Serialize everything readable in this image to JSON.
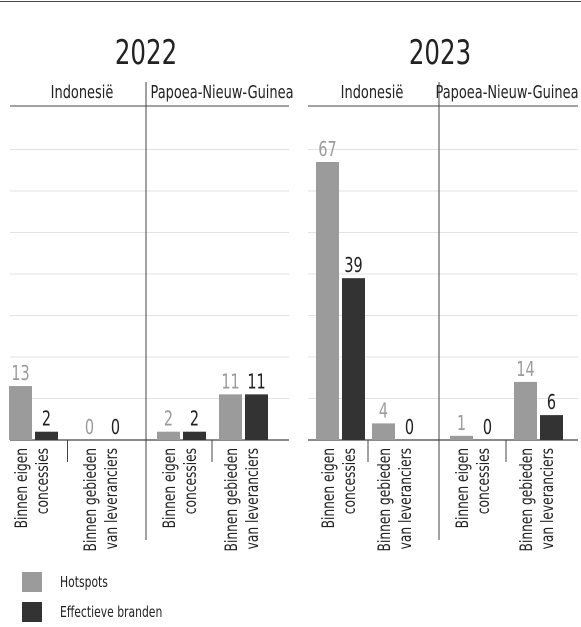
{
  "colors": {
    "hotspots": "#9b9b9b",
    "branden": "#333333",
    "grid": "#e3e3e3",
    "axis": "#444444",
    "text": "#222222"
  },
  "chart_data": [
    {
      "type": "bar",
      "title": "2022",
      "groups": [
        "Indonesië",
        "Papoea-Nieuw-Guinea"
      ],
      "categories": [
        "Binnen eigen concessies",
        "Binnen gebieden van leveranciers",
        "Binnen eigen concessies",
        "Binnen gebieden van leveranciers"
      ],
      "category_lines": [
        [
          "Binnen eigen",
          "concessies"
        ],
        [
          "Binnen gebieden",
          "van leveranciers"
        ],
        [
          "Binnen eigen",
          "concessies"
        ],
        [
          "Binnen gebieden",
          "van leveranciers"
        ]
      ],
      "series": [
        {
          "name": "Hotspots",
          "values": [
            13,
            0,
            2,
            11
          ]
        },
        {
          "name": "Effectieve branden",
          "values": [
            2,
            0,
            2,
            11
          ]
        }
      ],
      "ylim": [
        0,
        70
      ],
      "grid": true
    },
    {
      "type": "bar",
      "title": "2023",
      "groups": [
        "Indonesië",
        "Papoea-Nieuw-Guinea"
      ],
      "categories": [
        "Binnen eigen concessies",
        "Binnen gebieden van leveranciers",
        "Binnen eigen concessies",
        "Binnen gebieden van leveranciers"
      ],
      "category_lines": [
        [
          "Binnen eigen",
          "concessies"
        ],
        [
          "Binnen gebieden",
          "van leveranciers"
        ],
        [
          "Binnen eigen",
          "concessies"
        ],
        [
          "Binnen gebieden",
          "van leveranciers"
        ]
      ],
      "series": [
        {
          "name": "Hotspots",
          "values": [
            67,
            4,
            1,
            14
          ]
        },
        {
          "name": "Effectieve branden",
          "values": [
            39,
            0,
            0,
            6
          ]
        }
      ],
      "ylim": [
        0,
        70
      ],
      "grid": true
    }
  ],
  "legend": [
    {
      "label": "Hotspots"
    },
    {
      "label": "Effectieve branden"
    }
  ]
}
